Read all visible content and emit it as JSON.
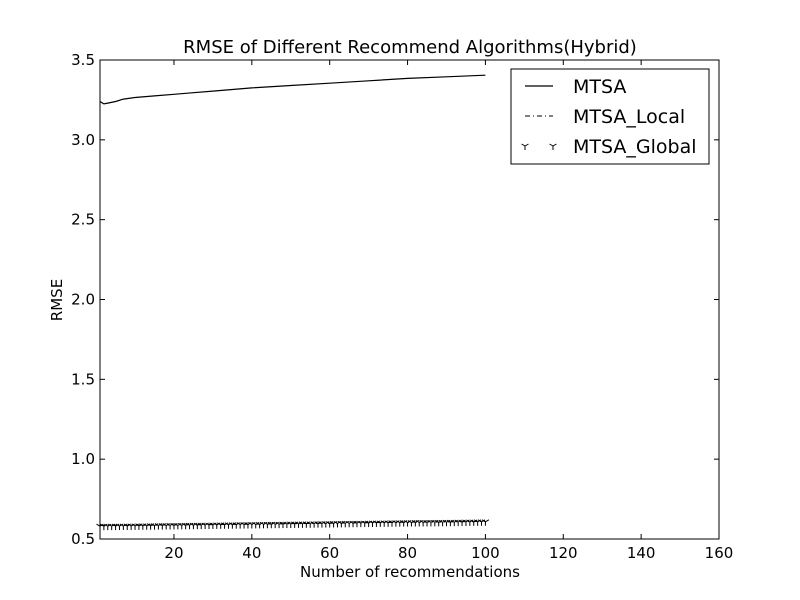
{
  "chart_data": {
    "type": "line",
    "title": "RMSE of Different Recommend Algorithms(Hybrid)",
    "xlabel": "Number of recommendations",
    "ylabel": "RMSE",
    "xlim": [
      1,
      160
    ],
    "ylim": [
      0.5,
      3.5
    ],
    "xticks": [
      20,
      40,
      60,
      80,
      100,
      120,
      140,
      160
    ],
    "yticks": [
      0.5,
      1.0,
      1.5,
      2.0,
      2.5,
      3.0,
      3.5
    ],
    "xtick_labels": [
      "20",
      "40",
      "60",
      "80",
      "100",
      "120",
      "140",
      "160"
    ],
    "ytick_labels": [
      "0.5",
      "1.0",
      "1.5",
      "2.0",
      "2.5",
      "3.0",
      "3.5"
    ],
    "grid": false,
    "legend_position": "top-right",
    "series": [
      {
        "name": "MTSA",
        "style": "solid",
        "x": [
          1,
          2,
          3,
          5,
          7,
          10,
          15,
          20,
          25,
          30,
          40,
          50,
          60,
          70,
          80,
          90,
          100
        ],
        "y": [
          3.24,
          3.225,
          3.23,
          3.24,
          3.255,
          3.265,
          3.275,
          3.285,
          3.295,
          3.305,
          3.325,
          3.34,
          3.355,
          3.37,
          3.385,
          3.395,
          3.405
        ]
      },
      {
        "name": "MTSA_Local",
        "style": "dashdot",
        "x": [
          1,
          10,
          20,
          30,
          40,
          50,
          60,
          70,
          80,
          90,
          100
        ],
        "y": [
          0.585,
          0.586,
          0.588,
          0.59,
          0.593,
          0.596,
          0.599,
          0.602,
          0.605,
          0.607,
          0.61
        ]
      },
      {
        "name": "MTSA_Global",
        "style": "tri_down",
        "x": [
          1,
          10,
          20,
          30,
          40,
          50,
          60,
          70,
          80,
          90,
          100
        ],
        "y": [
          0.58,
          0.582,
          0.585,
          0.588,
          0.591,
          0.594,
          0.597,
          0.6,
          0.603,
          0.605,
          0.608
        ]
      }
    ]
  }
}
